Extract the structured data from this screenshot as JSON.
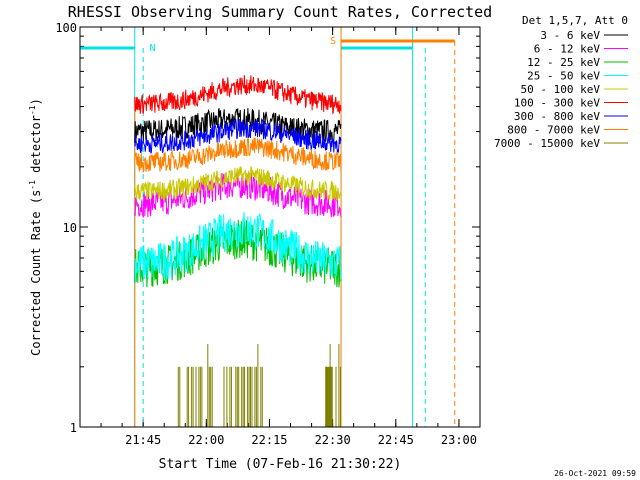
{
  "chart_data": {
    "type": "line",
    "title": "RHESSI Observing Summary Count Rates, Corrected",
    "xlabel": "Start Time (07-Feb-16 21:30:22)",
    "ylabel": "Corrected Count Rate (s⁻¹ detector⁻¹)",
    "ylabel_main": "Corrected Count Rate (s",
    "ylabel_sup1": "-1",
    "ylabel_mid": " detector",
    "ylabel_sup2": "-1",
    "ylabel_end": ")",
    "yscale": "log",
    "ylim": [
      1,
      100
    ],
    "yticks": [
      {
        "v": 1,
        "label": "1"
      },
      {
        "v": 10,
        "label": "10"
      },
      {
        "v": 100,
        "label": "100"
      }
    ],
    "xlim_minutes": [
      -30,
      65
    ],
    "xticks": [
      {
        "m": -15,
        "label": "21:45"
      },
      {
        "m": 0,
        "label": "22:00"
      },
      {
        "m": 15,
        "label": "22:15"
      },
      {
        "m": 30,
        "label": "22:30"
      },
      {
        "m": 45,
        "label": "22:45"
      },
      {
        "m": 60,
        "label": "23:00"
      }
    ],
    "legend_header": "Det 1,5,7, Att 0",
    "legend_placement": "right",
    "series": [
      {
        "name": "3 - 6 keV",
        "color": "#000000",
        "base": 30,
        "bump": 1.15,
        "noise": 0.06
      },
      {
        "name": "6 - 12 keV",
        "color": "#ff00ff",
        "base": 13,
        "bump": 1.25,
        "noise": 0.07
      },
      {
        "name": "12 - 25 keV",
        "color": "#00c000",
        "base": 6.2,
        "bump": 1.4,
        "noise": 0.1
      },
      {
        "name": "25 - 50 keV",
        "color": "#00ffff",
        "base": 6.5,
        "bump": 1.5,
        "noise": 0.1
      },
      {
        "name": "50 - 100 keV",
        "color": "#c8c800",
        "base": 15,
        "bump": 1.2,
        "noise": 0.05
      },
      {
        "name": "100 - 300 keV",
        "color": "#ff0000",
        "base": 41,
        "bump": 1.25,
        "noise": 0.05
      },
      {
        "name": "300 - 800 keV",
        "color": "#0000ff",
        "base": 26,
        "bump": 1.2,
        "noise": 0.05
      },
      {
        "name": "800 - 7000 keV",
        "color": "#ff8000",
        "base": 21,
        "bump": 1.2,
        "noise": 0.05
      },
      {
        "name": "7000 - 15000 keV",
        "color": "#808000",
        "base": 1,
        "bump": 1.0,
        "noise": 0
      }
    ],
    "data_window_minutes": [
      -17,
      32
    ],
    "night_intervals": [
      [
        -30,
        -17
      ],
      [
        32,
        49
      ]
    ],
    "saa_interval": [
      32,
      59
    ],
    "markers": {
      "N": "N",
      "S": "S"
    },
    "timestamp": "26-Oct-2021 09:59"
  }
}
